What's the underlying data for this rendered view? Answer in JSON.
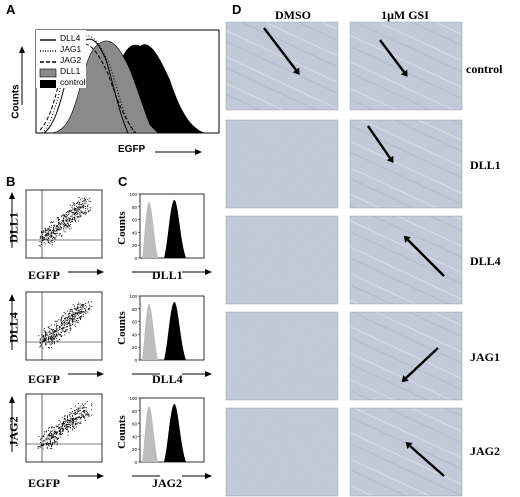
{
  "panels": {
    "A": {
      "label": "A",
      "ylabel": "Counts",
      "xlabel": "EGFP",
      "legend": [
        {
          "name": "DLL4",
          "style": "solid"
        },
        {
          "name": "JAG1",
          "style": "dotted"
        },
        {
          "name": "JAG2",
          "style": "dashed"
        },
        {
          "name": "DLL1",
          "style": "gray-fill"
        },
        {
          "name": "control",
          "style": "black-fill"
        }
      ]
    },
    "B": {
      "label": "B",
      "plots": [
        {
          "ylabel": "DLL1",
          "xlabel": "EGFP"
        },
        {
          "ylabel": "DLL4",
          "xlabel": "EGFP"
        },
        {
          "ylabel": "JAG2",
          "xlabel": "EGFP"
        }
      ]
    },
    "C": {
      "label": "C",
      "ylabel": "Counts",
      "ticks": [
        "100",
        "80",
        "60",
        "40",
        "20",
        "0"
      ],
      "plots": [
        {
          "xlabel": "DLL1"
        },
        {
          "xlabel": "DLL4"
        },
        {
          "xlabel": "JAG2"
        }
      ]
    },
    "D": {
      "label": "D",
      "columns": [
        "DMSO",
        "1μM GSI"
      ],
      "rows": [
        "control",
        "DLL1",
        "DLL4",
        "JAG1",
        "JAG2"
      ]
    }
  },
  "colors": {
    "micrograph": "#c6cedb",
    "gray_fill": "#8a8a8a",
    "black_fill": "#000000"
  }
}
